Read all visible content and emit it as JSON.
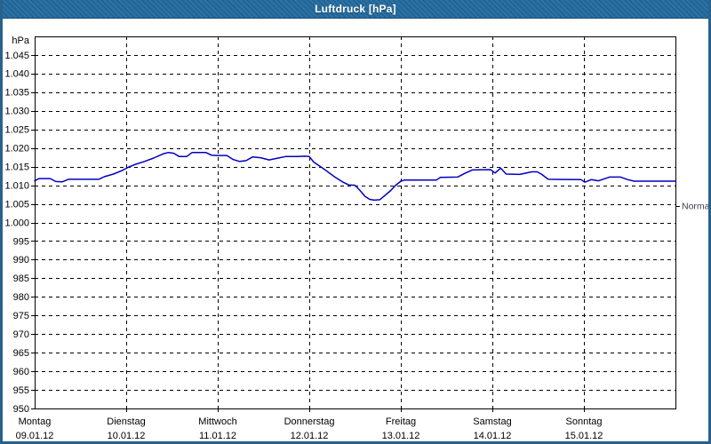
{
  "window": {
    "title": "Luftdruck [hPa]"
  },
  "chart_data": {
    "type": "line",
    "title": "Luftdruck [hPa]",
    "ylabel": "hPa",
    "grid": true,
    "legend_position": "none",
    "y_axis": {
      "min": 950,
      "max": 1050,
      "tick_step": 5,
      "unit_label": "hPa",
      "ticks": [
        {
          "value": 1045,
          "label": "1.045"
        },
        {
          "value": 1040,
          "label": "1.040"
        },
        {
          "value": 1035,
          "label": "1.035"
        },
        {
          "value": 1030,
          "label": "1.030"
        },
        {
          "value": 1025,
          "label": "1.025"
        },
        {
          "value": 1020,
          "label": "1.020"
        },
        {
          "value": 1015,
          "label": "1.015"
        },
        {
          "value": 1010,
          "label": "1.010"
        },
        {
          "value": 1005,
          "label": "1.005"
        },
        {
          "value": 1000,
          "label": "1.000"
        },
        {
          "value": 995,
          "label": "995"
        },
        {
          "value": 990,
          "label": "990"
        },
        {
          "value": 985,
          "label": "985"
        },
        {
          "value": 980,
          "label": "980"
        },
        {
          "value": 975,
          "label": "975"
        },
        {
          "value": 970,
          "label": "970"
        },
        {
          "value": 965,
          "label": "965"
        },
        {
          "value": 960,
          "label": "960"
        },
        {
          "value": 955,
          "label": "955"
        },
        {
          "value": 950,
          "label": "950"
        }
      ]
    },
    "x_axis": {
      "range_days": 7,
      "days": [
        {
          "name": "Montag",
          "date": "09.01.12"
        },
        {
          "name": "Dienstag",
          "date": "10.01.12"
        },
        {
          "name": "Mittwoch",
          "date": "11.01.12"
        },
        {
          "name": "Donnerstag",
          "date": "12.01.12"
        },
        {
          "name": "Freitag",
          "date": "13.01.12"
        },
        {
          "name": "Samstag",
          "date": "14.01.12"
        },
        {
          "name": "Sonntag",
          "date": "15.01.12"
        }
      ]
    },
    "normal_marker": {
      "label": "Normal",
      "value": 1004.5
    },
    "series": [
      {
        "name": "Luftdruck",
        "color": "#0000bf",
        "points": [
          [
            0.0,
            1011.2
          ],
          [
            0.05,
            1011.8
          ],
          [
            0.17,
            1011.8
          ],
          [
            0.23,
            1011.0
          ],
          [
            0.3,
            1010.9
          ],
          [
            0.37,
            1011.6
          ],
          [
            0.7,
            1011.6
          ],
          [
            0.76,
            1012.3
          ],
          [
            0.86,
            1013.0
          ],
          [
            0.95,
            1013.9
          ],
          [
            1.02,
            1014.8
          ],
          [
            1.1,
            1015.6
          ],
          [
            1.2,
            1016.4
          ],
          [
            1.3,
            1017.3
          ],
          [
            1.4,
            1018.4
          ],
          [
            1.46,
            1018.8
          ],
          [
            1.52,
            1018.6
          ],
          [
            1.58,
            1017.7
          ],
          [
            1.66,
            1017.7
          ],
          [
            1.72,
            1018.8
          ],
          [
            1.87,
            1018.8
          ],
          [
            1.93,
            1018.1
          ],
          [
            2.0,
            1018.0
          ],
          [
            2.1,
            1018.0
          ],
          [
            2.17,
            1016.9
          ],
          [
            2.24,
            1016.4
          ],
          [
            2.31,
            1016.6
          ],
          [
            2.38,
            1017.6
          ],
          [
            2.47,
            1017.4
          ],
          [
            2.56,
            1016.8
          ],
          [
            2.66,
            1017.3
          ],
          [
            2.74,
            1017.7
          ],
          [
            2.87,
            1017.7
          ],
          [
            2.95,
            1017.8
          ],
          [
            3.0,
            1017.7
          ],
          [
            3.05,
            1016.2
          ],
          [
            3.11,
            1015.2
          ],
          [
            3.18,
            1014.0
          ],
          [
            3.28,
            1012.2
          ],
          [
            3.37,
            1010.8
          ],
          [
            3.43,
            1010.1
          ],
          [
            3.5,
            1010.0
          ],
          [
            3.55,
            1008.7
          ],
          [
            3.61,
            1007.0
          ],
          [
            3.66,
            1006.2
          ],
          [
            3.71,
            1006.0
          ],
          [
            3.77,
            1006.1
          ],
          [
            3.81,
            1006.9
          ],
          [
            3.89,
            1008.6
          ],
          [
            3.94,
            1009.9
          ],
          [
            4.0,
            1011.1
          ],
          [
            4.04,
            1011.4
          ],
          [
            4.39,
            1011.4
          ],
          [
            4.43,
            1012.1
          ],
          [
            4.62,
            1012.2
          ],
          [
            4.7,
            1013.2
          ],
          [
            4.78,
            1014.1
          ],
          [
            4.98,
            1014.2
          ],
          [
            5.03,
            1013.3
          ],
          [
            5.09,
            1014.6
          ],
          [
            5.15,
            1013.0
          ],
          [
            5.3,
            1012.9
          ],
          [
            5.43,
            1013.6
          ],
          [
            5.49,
            1013.6
          ],
          [
            5.54,
            1012.9
          ],
          [
            5.61,
            1011.6
          ],
          [
            5.97,
            1011.5
          ],
          [
            6.01,
            1010.8
          ],
          [
            6.08,
            1011.5
          ],
          [
            6.16,
            1011.2
          ],
          [
            6.28,
            1012.2
          ],
          [
            6.4,
            1012.2
          ],
          [
            6.48,
            1011.5
          ],
          [
            6.55,
            1011.1
          ],
          [
            7.0,
            1011.1
          ]
        ]
      }
    ],
    "colors": {
      "title_bar_bg": "#20699c",
      "title_text": "#ffffff",
      "window_border": "#2a618c",
      "plot_border": "#000000",
      "grid": "#000000",
      "line": "#0000bf",
      "label_text": "#000000",
      "normal_text": "#3c3c50",
      "background": "#ffffff"
    }
  }
}
